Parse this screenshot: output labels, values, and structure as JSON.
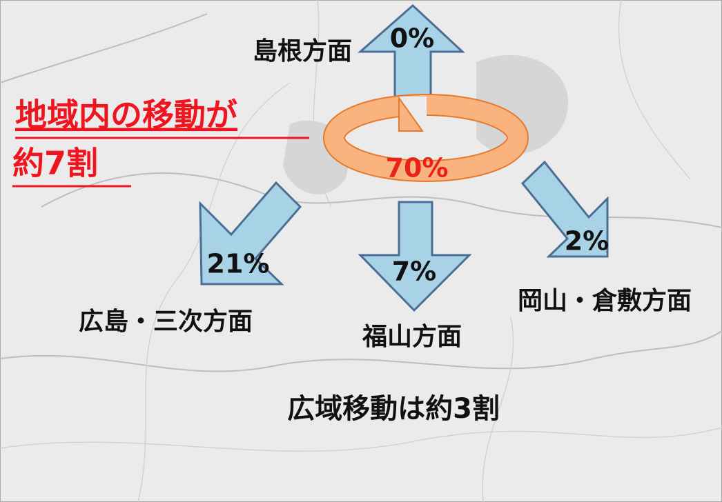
{
  "headline": {
    "lines": [
      "地域内の移動が",
      "約7割"
    ]
  },
  "internal": {
    "share": "70%"
  },
  "directions": [
    {
      "label": "島根方面",
      "share": "0%"
    },
    {
      "label": "広島・三次方面",
      "share": "21%"
    },
    {
      "label": "福山方面",
      "share": "7%"
    },
    {
      "label": "岡山・倉敷方面",
      "share": "2%"
    }
  ],
  "footer": "広域移動は約3割"
}
